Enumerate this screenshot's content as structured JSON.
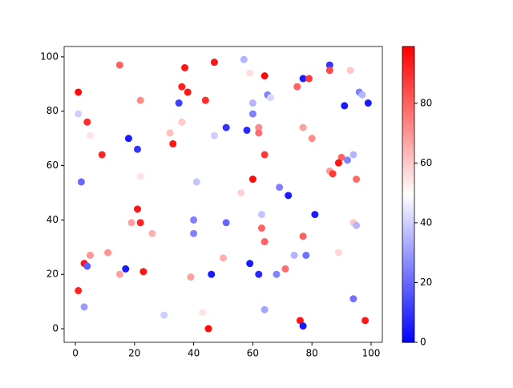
{
  "chart_data": {
    "type": "scatter",
    "x": [
      1,
      1,
      4,
      5,
      9,
      2,
      15,
      22,
      18,
      21,
      22,
      21,
      19,
      22,
      26,
      5,
      11,
      3,
      4,
      15,
      17,
      23,
      1,
      3,
      30,
      37,
      47,
      36,
      38,
      35,
      44,
      36,
      32,
      33,
      47,
      41,
      40,
      40,
      51,
      50,
      39,
      46,
      43,
      45,
      57,
      59,
      64,
      65,
      66,
      60,
      60,
      51,
      58,
      62,
      62,
      64,
      60,
      56,
      69,
      72,
      63,
      63,
      64,
      59,
      62,
      68,
      71,
      64,
      77,
      79,
      75,
      77,
      80,
      77,
      74,
      78,
      81,
      76,
      77,
      86,
      86,
      93,
      91,
      96,
      97,
      99,
      90,
      89,
      92,
      94,
      86,
      87,
      95,
      94,
      95,
      89,
      94,
      98
    ],
    "y": [
      87,
      79,
      76,
      71,
      64,
      54,
      97,
      84,
      70,
      66,
      56,
      44,
      39,
      39,
      35,
      27,
      28,
      24,
      23,
      20,
      22,
      21,
      14,
      8,
      5,
      96,
      98,
      89,
      87,
      83,
      84,
      76,
      72,
      68,
      71,
      54,
      40,
      35,
      39,
      26,
      19,
      20,
      6,
      0,
      99,
      94,
      93,
      86,
      85,
      83,
      79,
      74,
      73,
      74,
      72,
      64,
      55,
      50,
      52,
      49,
      42,
      37,
      32,
      24,
      20,
      20,
      22,
      7,
      92,
      92,
      89,
      74,
      70,
      34,
      27,
      27,
      42,
      3,
      1,
      97,
      95,
      95,
      82,
      87,
      86,
      83,
      63,
      61,
      62,
      64,
      58,
      57,
      55,
      39,
      38,
      28,
      11,
      3
    ],
    "c": [
      97,
      40,
      90,
      55,
      92,
      20,
      80,
      72,
      5,
      10,
      55,
      95,
      68,
      92,
      65,
      70,
      70,
      95,
      18,
      68,
      5,
      95,
      92,
      30,
      40,
      95,
      95,
      93,
      95,
      12,
      90,
      60,
      62,
      95,
      40,
      38,
      25,
      25,
      20,
      65,
      68,
      5,
      55,
      97,
      35,
      56,
      97,
      25,
      42,
      35,
      25,
      10,
      8,
      72,
      78,
      88,
      97,
      58,
      25,
      5,
      38,
      80,
      80,
      5,
      8,
      25,
      78,
      32,
      5,
      88,
      80,
      68,
      72,
      80,
      35,
      22,
      5,
      95,
      5,
      10,
      85,
      60,
      5,
      25,
      35,
      5,
      80,
      95,
      25,
      35,
      68,
      88,
      78,
      60,
      35,
      57,
      22,
      95
    ],
    "colormap": "bwr",
    "clim": [
      0,
      99
    ],
    "xlim": [
      -3.8,
      103.8
    ],
    "ylim": [
      -5,
      103.8
    ],
    "xticks": [
      0,
      20,
      40,
      60,
      80,
      100
    ],
    "yticks": [
      0,
      20,
      40,
      60,
      80,
      100
    ],
    "colorbar_ticks": [
      0,
      20,
      40,
      60,
      80
    ]
  }
}
